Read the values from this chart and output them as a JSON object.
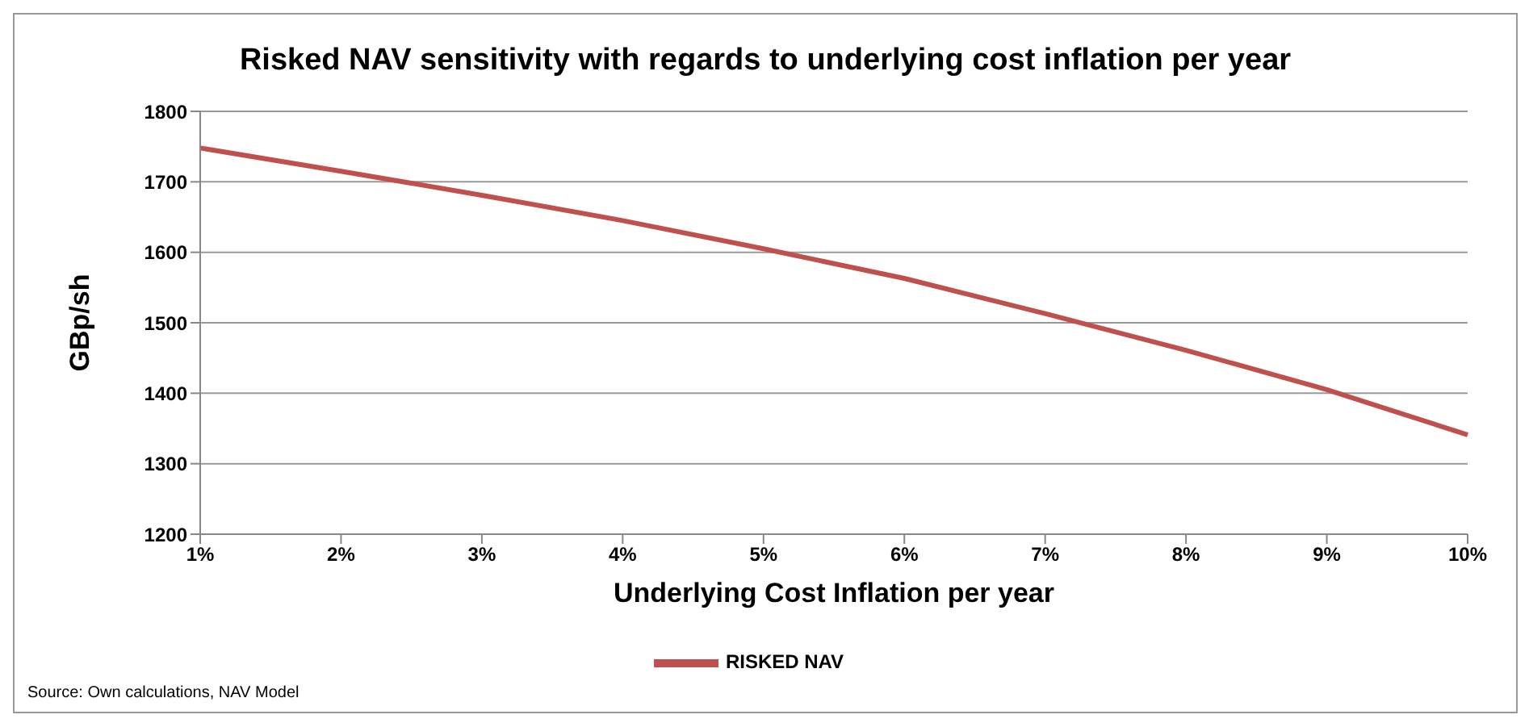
{
  "chart_data": {
    "type": "line",
    "title": "Risked NAV sensitivity with regards to underlying cost inflation per year",
    "xlabel": "Underlying Cost Inflation per year",
    "ylabel": "GBp/sh",
    "categories": [
      "1%",
      "2%",
      "3%",
      "4%",
      "5%",
      "6%",
      "7%",
      "8%",
      "9%",
      "10%"
    ],
    "series": [
      {
        "name": "RISKED NAV",
        "color": "#c0504d",
        "values": [
          1748,
          1715,
          1681,
          1645,
          1605,
          1563,
          1513,
          1461,
          1405,
          1341
        ]
      }
    ],
    "ylim": [
      1200,
      1800
    ],
    "yticks": [
      1200,
      1300,
      1400,
      1500,
      1600,
      1700,
      1800
    ],
    "grid": "y",
    "legend": "bottom",
    "marker": "none",
    "line_style": "solid",
    "annotations": [
      "Source:  Own calculations, NAV Model"
    ]
  }
}
